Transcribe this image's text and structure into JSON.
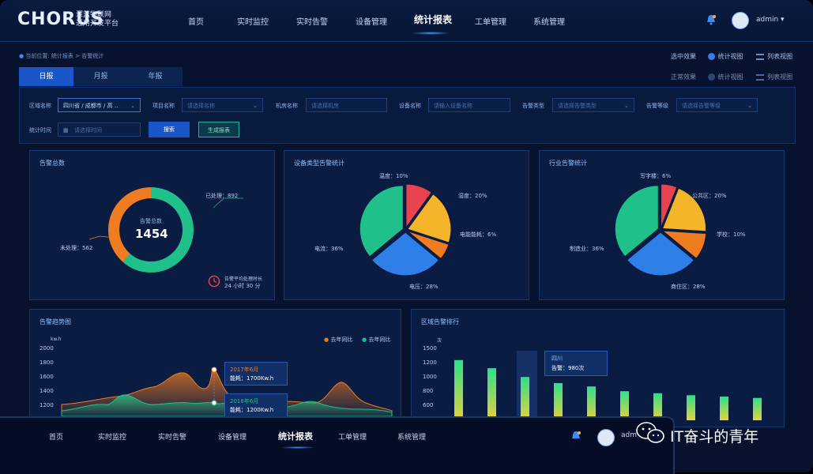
{
  "app": {
    "logo": "CHORUS",
    "logo_sub_1": "深蓝物联网",
    "logo_sub_2": "通用开发平台",
    "user": "admin ▾"
  },
  "nav": [
    "首页",
    "实时监控",
    "实时告警",
    "设备管理",
    "统计报表",
    "工单管理",
    "系统管理"
  ],
  "nav_active": 4,
  "breadcrumb": "当前位置: 统计报表 > 告警统计",
  "tabs": [
    "日报",
    "月报",
    "年报"
  ],
  "tab_active": 0,
  "view_modes": {
    "selected_label": "选中效果",
    "normal_label": "正常效果",
    "chart_view": "统计视图",
    "list_view": "列表视图"
  },
  "filters": {
    "region_label": "区域名称",
    "region_value": "四川省 / 成都市 / 高 ..",
    "project_label": "项目名称",
    "project_placeholder": "请选择名称",
    "machine_label": "机房名称",
    "machine_placeholder": "请选择机房",
    "device_label": "设备名称",
    "device_placeholder": "请输入设备名称",
    "type_label": "告警类型",
    "type_placeholder": "请选择告警类型",
    "level_label": "告警等级",
    "level_placeholder": "请选择告警等级",
    "time_label": "统计时间",
    "time_placeholder": "请选择时间",
    "search_btn": "搜索",
    "generate_btn": "生成报表"
  },
  "total_card": {
    "title": "告警总数",
    "center_label": "告警总数",
    "center_value": "1454",
    "handled_label": "已处理：892",
    "unhandled_label": "未处理：562",
    "avg_label": "告警平均处理时长",
    "avg_value": "24 小时 30 分",
    "handled": 892,
    "unhandled": 562,
    "colors": {
      "handled": "#1fc08a",
      "unhandled": "#f07c22"
    }
  },
  "device_card": {
    "title": "设备类型告警统计",
    "slices": [
      {
        "label": "温度：10%",
        "value": 10,
        "color": "#e8434e"
      },
      {
        "label": "湿度：20%",
        "value": 20,
        "color": "#f4b52a"
      },
      {
        "label": "电能能耗：6%",
        "value": 6,
        "color": "#f07c22"
      },
      {
        "label": "电压：28%",
        "value": 28,
        "color": "#2e7fe8"
      },
      {
        "label": "电流：36%",
        "value": 36,
        "color": "#1fc08a"
      }
    ]
  },
  "industry_card": {
    "title": "行业告警统计",
    "slices": [
      {
        "label": "写字楼：6%",
        "value": 6,
        "color": "#e8434e"
      },
      {
        "label": "公共区：20%",
        "value": 20,
        "color": "#f4b52a"
      },
      {
        "label": "学校：10%",
        "value": 10,
        "color": "#f07c22"
      },
      {
        "label": "商住区：28%",
        "value": 28,
        "color": "#2e7fe8"
      },
      {
        "label": "制造业：36%",
        "value": 36,
        "color": "#1fc08a"
      }
    ]
  },
  "trend_card": {
    "title": "告警趋势图",
    "unit": "kw.h",
    "y_ticks": [
      "2000",
      "1800",
      "1600",
      "1400",
      "1200"
    ],
    "legend": [
      "去年同比",
      "去年同比"
    ],
    "tip1_title": "2017年6月",
    "tip1_value": "能耗：1700Kw.h",
    "tip2_title": "2018年6月",
    "tip2_value": "能耗：1200Kw.h",
    "colors": {
      "a": "#f07c22",
      "b": "#1fc08a"
    }
  },
  "rank_card": {
    "title": "区域告警排行",
    "unit": "次",
    "y_ticks": [
      "1500",
      "1200",
      "1000",
      "800",
      "600"
    ],
    "tip_title": "四川",
    "tip_value": "告警：980次",
    "bars": [
      1280,
      1160,
      1030,
      940,
      890,
      820,
      790,
      760,
      740,
      720
    ]
  },
  "bottom_nav": [
    "首页",
    "实时监控",
    "实时告警",
    "设备管理",
    "统计报表",
    "工单管理",
    "系统管理"
  ],
  "bottom_user": "adm",
  "watermark": "IT奋斗的青年"
}
